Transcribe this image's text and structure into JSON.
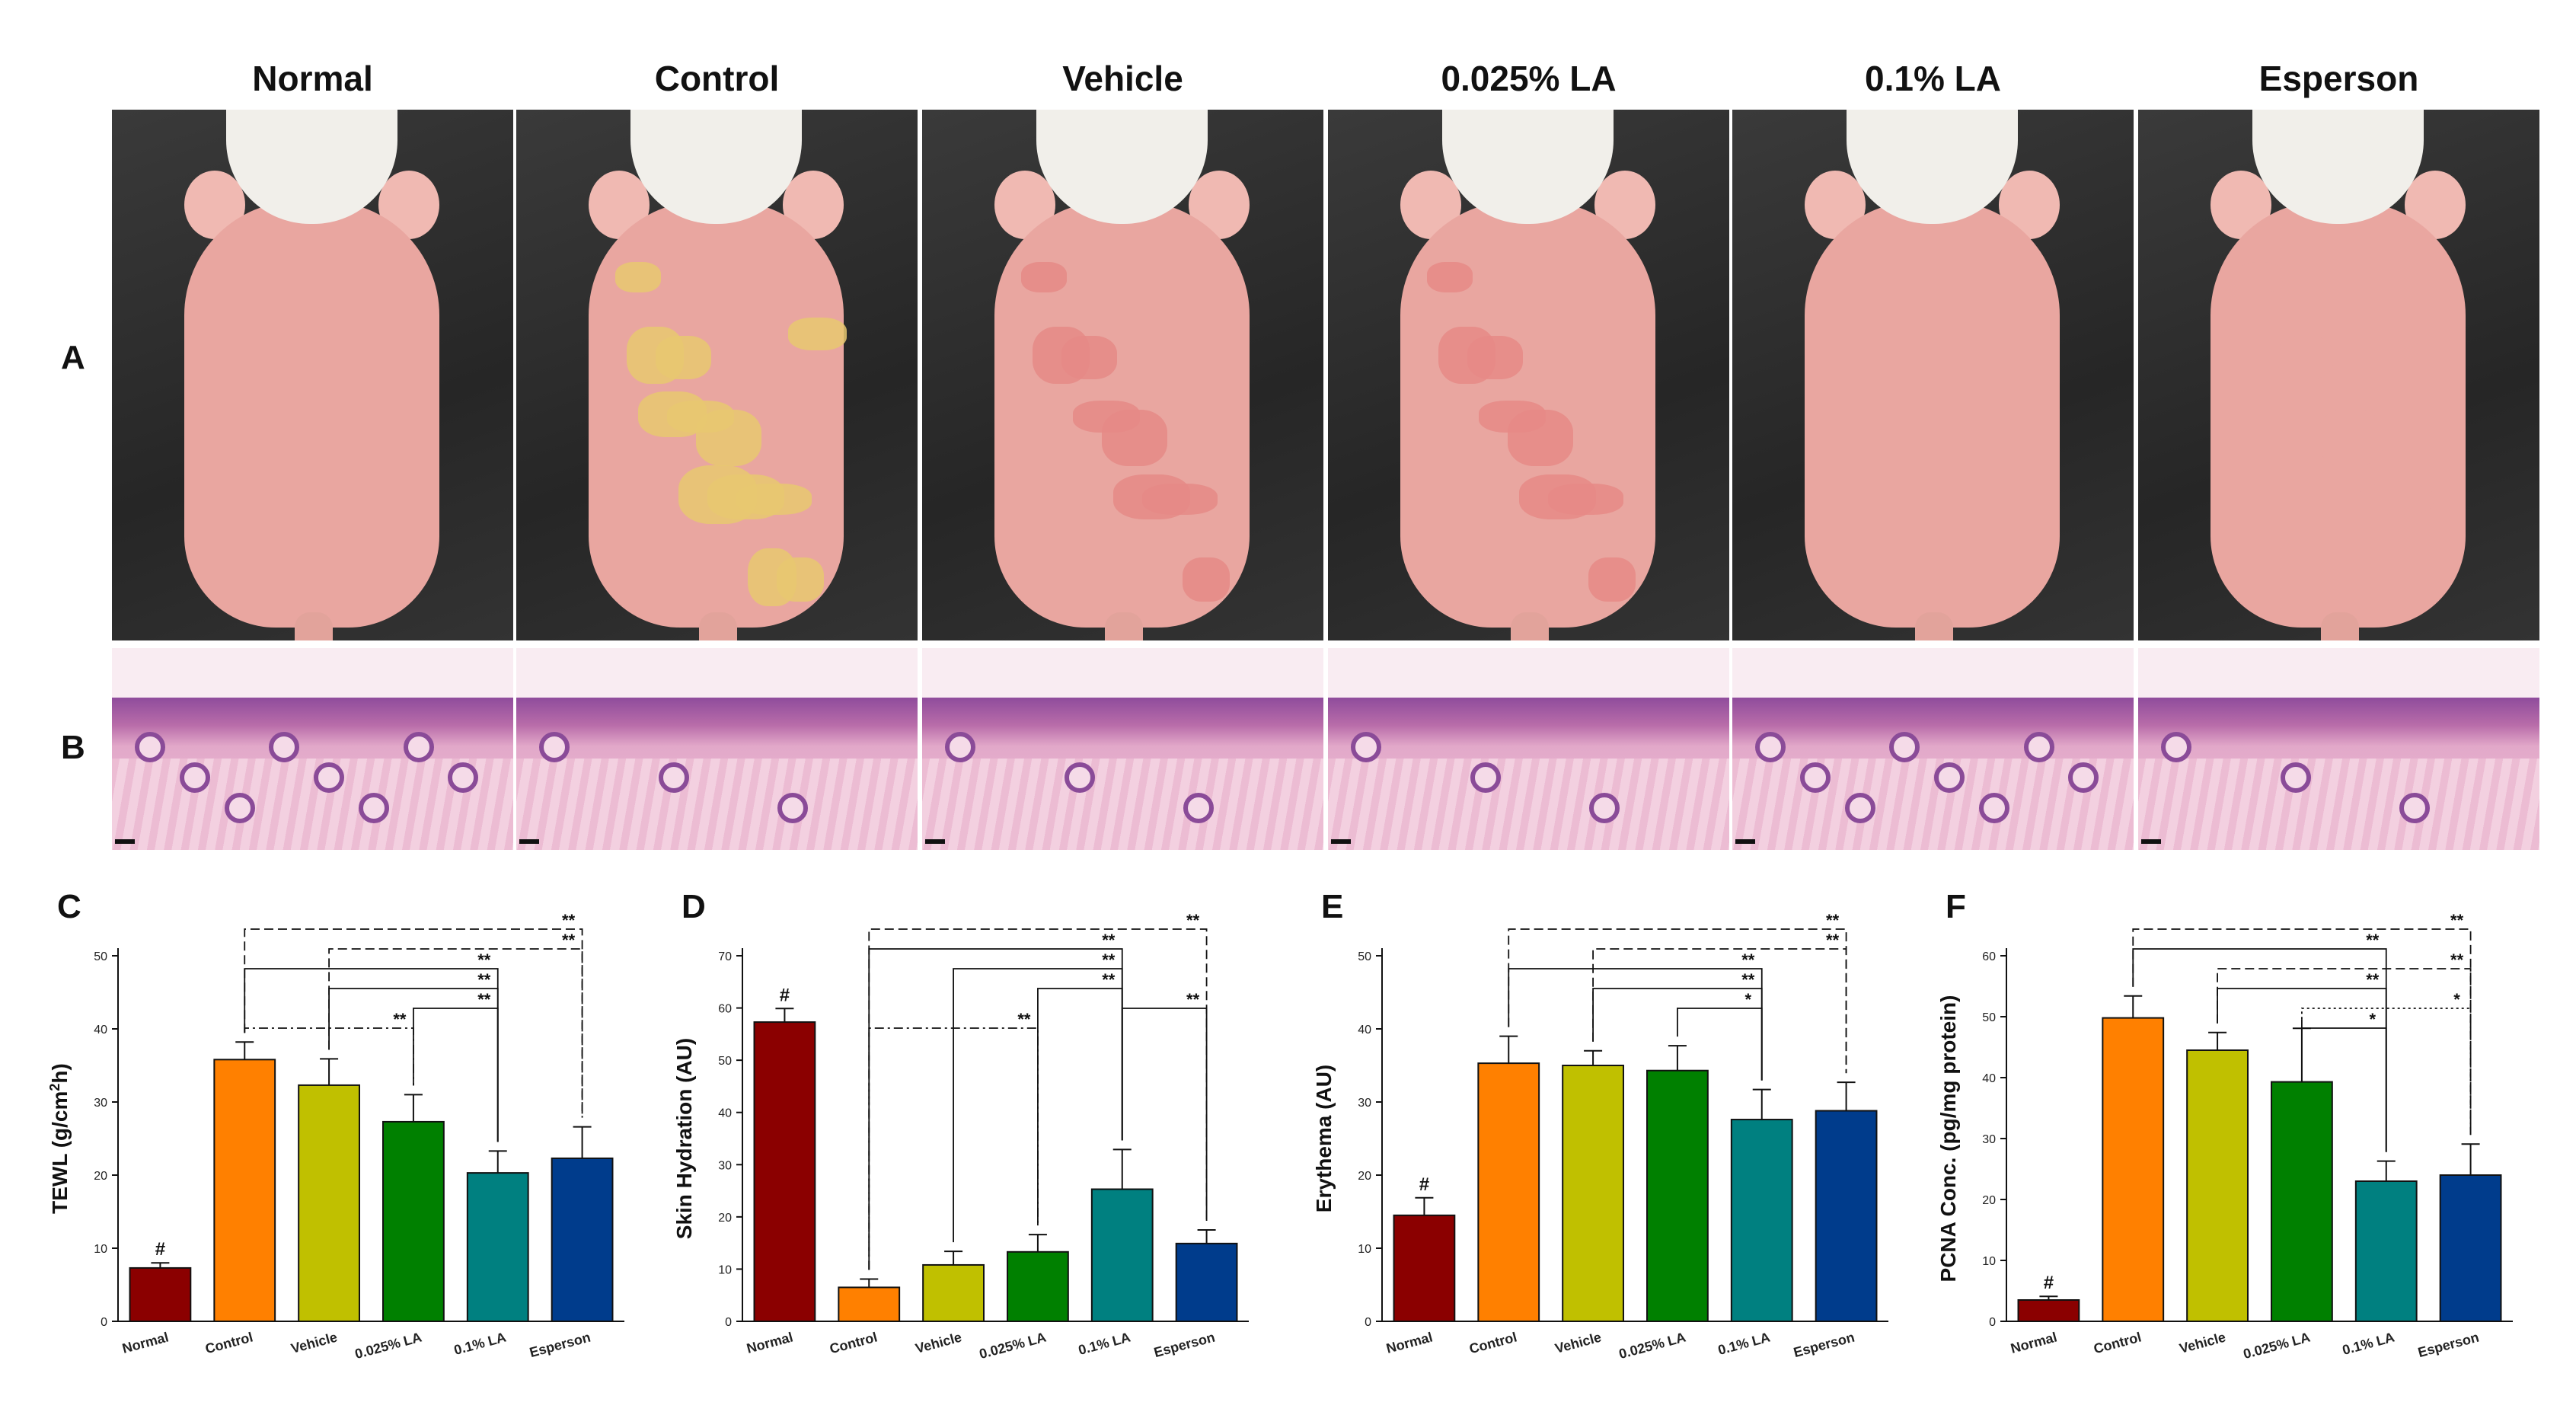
{
  "figure": {
    "columns": [
      {
        "title": "Normal",
        "lesion_color": "#e9a6a0",
        "lesion": 0
      },
      {
        "title": "Control",
        "lesion_color": "#e8c870",
        "lesion": 3
      },
      {
        "title": "Vehicle",
        "lesion_color": "#e58a86",
        "lesion": 2
      },
      {
        "title": "0.025% LA",
        "lesion_color": "#e68a86",
        "lesion": 2
      },
      {
        "title": "0.1% LA",
        "lesion_color": "#e9a6a0",
        "lesion": 0
      },
      {
        "title": "Esperson",
        "lesion_color": "#e9a6a0",
        "lesion": 1
      }
    ],
    "row_labels": {
      "photos": "A",
      "histology": "B"
    }
  },
  "chart_data": [
    {
      "panel": "C",
      "type": "bar",
      "categories": [
        "Normal",
        "Control",
        "Vehicle",
        "0.025% LA",
        "0.1% LA",
        "Esperson"
      ],
      "values": [
        7.3,
        35.8,
        32.3,
        27.3,
        20.3,
        22.3
      ],
      "errors": [
        0.7,
        2.4,
        3.6,
        3.7,
        3.0,
        4.3
      ],
      "colors": [
        "#8b0000",
        "#ff8000",
        "#c0c000",
        "#008000",
        "#008080",
        "#003c8c"
      ],
      "ylabel_main": "TEWL (g/cm",
      "ylabel_sup": "2",
      "ylabel_end": "h)",
      "ylim": [
        0,
        50
      ],
      "yticks": [
        0,
        10,
        20,
        30,
        40,
        50
      ],
      "hash_on": 0,
      "brackets": [
        {
          "from": 1,
          "to": 5,
          "level": 0,
          "label": "**",
          "style": "dashed"
        },
        {
          "from": 2,
          "to": 5,
          "level": 1,
          "label": "**",
          "style": "dashed"
        },
        {
          "from": 1,
          "to": 4,
          "level": 2,
          "label": "**",
          "style": "solid"
        },
        {
          "from": 2,
          "to": 4,
          "level": 3,
          "label": "**",
          "style": "solid"
        },
        {
          "from": 3,
          "to": 4,
          "level": 4,
          "label": "**",
          "style": "solid"
        },
        {
          "from": 1,
          "to": 3,
          "level": 5,
          "label": "**",
          "style": "dashdot"
        }
      ]
    },
    {
      "panel": "D",
      "type": "bar",
      "categories": [
        "Normal",
        "Control",
        "Vehicle",
        "0.025% LA",
        "0.1% LA",
        "Esperson"
      ],
      "values": [
        57.3,
        6.5,
        10.8,
        13.3,
        25.3,
        14.9
      ],
      "errors": [
        2.6,
        1.6,
        2.6,
        3.3,
        7.6,
        2.6
      ],
      "colors": [
        "#8b0000",
        "#ff8000",
        "#c0c000",
        "#008000",
        "#008080",
        "#003c8c"
      ],
      "ylabel_main": "Skin Hydration (AU)",
      "ylabel_sup": "",
      "ylabel_end": "",
      "ylim": [
        0,
        70
      ],
      "yticks": [
        0,
        10,
        20,
        30,
        40,
        50,
        60,
        70
      ],
      "hash_on": 0,
      "brackets": [
        {
          "from": 1,
          "to": 5,
          "level": 0,
          "label": "**",
          "style": "dashed"
        },
        {
          "from": 1,
          "to": 4,
          "level": 1,
          "label": "**",
          "style": "solid"
        },
        {
          "from": 2,
          "to": 4,
          "level": 2,
          "label": "**",
          "style": "solid"
        },
        {
          "from": 3,
          "to": 4,
          "level": 3,
          "label": "**",
          "style": "solid"
        },
        {
          "from": 4,
          "to": 5,
          "level": 4,
          "label": "**",
          "style": "solid"
        },
        {
          "from": 1,
          "to": 3,
          "level": 5,
          "label": "**",
          "style": "dashdot"
        }
      ]
    },
    {
      "panel": "E",
      "type": "bar",
      "categories": [
        "Normal",
        "Control",
        "Vehicle",
        "0.025% LA",
        "0.1% LA",
        "Esperson"
      ],
      "values": [
        14.5,
        35.3,
        35.0,
        34.3,
        27.6,
        28.8
      ],
      "errors": [
        2.4,
        3.7,
        2.0,
        3.4,
        4.1,
        3.9
      ],
      "colors": [
        "#8b0000",
        "#ff8000",
        "#c0c000",
        "#008000",
        "#008080",
        "#003c8c"
      ],
      "ylabel_main": "Erythema (AU)",
      "ylabel_sup": "",
      "ylabel_end": "",
      "ylim": [
        0,
        50
      ],
      "yticks": [
        0,
        10,
        20,
        30,
        40,
        50
      ],
      "hash_on": 0,
      "brackets": [
        {
          "from": 1,
          "to": 5,
          "level": 0,
          "label": "**",
          "style": "dashed"
        },
        {
          "from": 2,
          "to": 5,
          "level": 1,
          "label": "**",
          "style": "dashed"
        },
        {
          "from": 1,
          "to": 4,
          "level": 2,
          "label": "**",
          "style": "solid"
        },
        {
          "from": 2,
          "to": 4,
          "level": 3,
          "label": "**",
          "style": "solid"
        },
        {
          "from": 3,
          "to": 4,
          "level": 4,
          "label": "*",
          "style": "solid"
        }
      ]
    },
    {
      "panel": "F",
      "type": "bar",
      "categories": [
        "Normal",
        "Control",
        "Vehicle",
        "0.025% LA",
        "0.1% LA",
        "Esperson"
      ],
      "values": [
        3.5,
        49.8,
        44.5,
        39.3,
        23.0,
        24.0
      ],
      "errors": [
        0.6,
        3.6,
        2.9,
        8.8,
        3.3,
        5.1
      ],
      "colors": [
        "#8b0000",
        "#ff8000",
        "#c0c000",
        "#008000",
        "#008080",
        "#003c8c"
      ],
      "ylabel_main": "PCNA Conc. (pg/mg protein)",
      "ylabel_sup": "",
      "ylabel_end": "",
      "ylim": [
        0,
        60
      ],
      "yticks": [
        0,
        10,
        20,
        30,
        40,
        50,
        60
      ],
      "hash_on": 0,
      "brackets": [
        {
          "from": 1,
          "to": 5,
          "level": 0,
          "label": "**",
          "style": "dashed"
        },
        {
          "from": 1,
          "to": 4,
          "level": 1,
          "label": "**",
          "style": "solid"
        },
        {
          "from": 2,
          "to": 5,
          "level": 2,
          "label": "**",
          "style": "dashed"
        },
        {
          "from": 2,
          "to": 4,
          "level": 3,
          "label": "**",
          "style": "solid"
        },
        {
          "from": 3,
          "to": 5,
          "level": 4,
          "label": "*",
          "style": "dotted"
        },
        {
          "from": 3,
          "to": 4,
          "level": 5,
          "label": "*",
          "style": "solid"
        }
      ]
    }
  ],
  "hash_label": "#"
}
